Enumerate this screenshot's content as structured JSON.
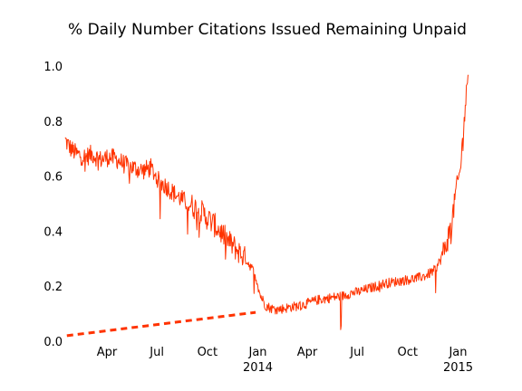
{
  "chart_data": {
    "type": "line",
    "title": "% Daily Number Citations Issued Remaining Unpaid",
    "xlabel": "",
    "ylabel": "",
    "xlim": [
      "2013-01-15",
      "2015-01-20"
    ],
    "ylim": [
      0.0,
      1.0
    ],
    "grid": false,
    "y_ticks": [
      "0.0",
      "0.2",
      "0.4",
      "0.6",
      "0.8",
      "1.0"
    ],
    "x_ticks": [
      {
        "date": "2013-04-01",
        "label": "Apr",
        "sublabel": ""
      },
      {
        "date": "2013-07-01",
        "label": "Jul",
        "sublabel": ""
      },
      {
        "date": "2013-10-01",
        "label": "Oct",
        "sublabel": ""
      },
      {
        "date": "2014-01-01",
        "label": "Jan",
        "sublabel": "2014"
      },
      {
        "date": "2014-04-01",
        "label": "Apr",
        "sublabel": ""
      },
      {
        "date": "2014-07-01",
        "label": "Jul",
        "sublabel": ""
      },
      {
        "date": "2014-10-01",
        "label": "Oct",
        "sublabel": ""
      },
      {
        "date": "2015-01-01",
        "label": "Jan",
        "sublabel": "2015"
      }
    ],
    "colors": {
      "series": "#ff3300",
      "dashed": "#ff3300"
    },
    "series": [
      {
        "style": "solid",
        "x": [
          "2013-01-15",
          "2013-01-25",
          "2013-02-05",
          "2013-02-20",
          "2013-03-05",
          "2013-03-20",
          "2013-04-05",
          "2013-04-20",
          "2013-05-05",
          "2013-05-20",
          "2013-06-05",
          "2013-06-20",
          "2013-07-05",
          "2013-07-20",
          "2013-08-05",
          "2013-08-20",
          "2013-09-05",
          "2013-09-20",
          "2013-10-05",
          "2013-10-20",
          "2013-11-05",
          "2013-11-20",
          "2013-12-05",
          "2013-12-20",
          "2013-12-29",
          "2014-01-05",
          "2014-01-15",
          "2014-01-25",
          "2014-02-05",
          "2014-02-20",
          "2014-03-05",
          "2014-03-20",
          "2014-04-05",
          "2014-04-20",
          "2014-05-05",
          "2014-05-20",
          "2014-06-05",
          "2014-06-20",
          "2014-07-05",
          "2014-07-20",
          "2014-08-05",
          "2014-08-20",
          "2014-09-05",
          "2014-09-20",
          "2014-10-05",
          "2014-10-20",
          "2014-11-05",
          "2014-11-20",
          "2014-12-01",
          "2014-12-10",
          "2014-12-20",
          "2014-12-28",
          "2015-01-05",
          "2015-01-12",
          "2015-01-20"
        ],
        "y": [
          0.73,
          0.7,
          0.68,
          0.67,
          0.68,
          0.66,
          0.67,
          0.66,
          0.64,
          0.63,
          0.62,
          0.63,
          0.58,
          0.56,
          0.53,
          0.51,
          0.49,
          0.47,
          0.44,
          0.41,
          0.37,
          0.34,
          0.31,
          0.27,
          0.23,
          0.17,
          0.13,
          0.12,
          0.115,
          0.12,
          0.125,
          0.13,
          0.14,
          0.15,
          0.155,
          0.16,
          0.165,
          0.175,
          0.18,
          0.19,
          0.2,
          0.21,
          0.215,
          0.22,
          0.225,
          0.23,
          0.24,
          0.26,
          0.3,
          0.35,
          0.42,
          0.55,
          0.62,
          0.8,
          1.0
        ]
      },
      {
        "style": "dashed",
        "x": [
          "2013-01-18",
          "2013-12-28"
        ],
        "y": [
          0.02,
          0.105
        ]
      }
    ]
  }
}
